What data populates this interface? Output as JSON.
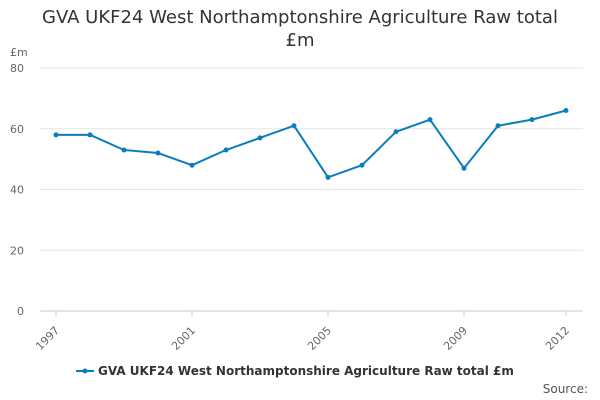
{
  "title_lines": [
    "GVA UKF24 West Northamptonshire Agriculture Raw total",
    "£m"
  ],
  "source_label": "Source:",
  "colors": {
    "series": "#0b7dbd",
    "grid": "#e6e6e6",
    "text": "#666666"
  },
  "chart_data": {
    "type": "line",
    "title": "GVA UKF24 West Northamptonshire Agriculture Raw total £m",
    "ylabel": "£m",
    "xlabel": "",
    "ylim": [
      0,
      80
    ],
    "yticks": [
      0,
      20,
      40,
      60,
      80
    ],
    "xtick_labels": [
      "1997",
      "2001",
      "2005",
      "2009",
      "2012"
    ],
    "grid": "horizontal",
    "legend_position": "bottom",
    "x": [
      1997,
      1998,
      1999,
      2000,
      2001,
      2002,
      2003,
      2004,
      2005,
      2006,
      2007,
      2008,
      2009,
      2010,
      2011,
      2012
    ],
    "series": [
      {
        "name": "GVA UKF24 West Northamptonshire Agriculture Raw total £m",
        "values": [
          58,
          58,
          53,
          52,
          48,
          53,
          57,
          61,
          44,
          48,
          59,
          63,
          47,
          61,
          63,
          66
        ]
      }
    ]
  }
}
